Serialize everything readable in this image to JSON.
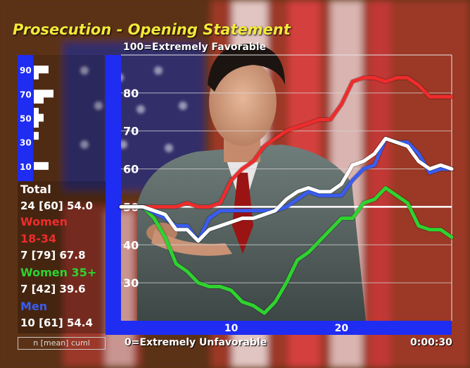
{
  "title": "Prosecution - Opening Statement",
  "scale_top_label": "100=Extremely Favorable",
  "scale_bottom_label": "0=Extremely Unfavorable",
  "timer": "0:00:30",
  "legend": {
    "groups": [
      {
        "label": "Total",
        "color": "#ffffff",
        "n": "24",
        "mean": "[60]",
        "cuml": "54.0"
      },
      {
        "label": "Women 18-34",
        "label_lines": [
          "Women",
          "18-34"
        ],
        "color": "#ee2c2c",
        "n": "7",
        "mean": "[79]",
        "cuml": "67.8"
      },
      {
        "label": "Women 35+",
        "label_lines": [
          "Women 35+"
        ],
        "color": "#2fd22f",
        "n": "7",
        "mean": "[42]",
        "cuml": "39.6"
      },
      {
        "label": "Men",
        "label_lines": [
          "Men"
        ],
        "color": "#3a5cf0",
        "n": "10",
        "mean": "[61]",
        "cuml": "54.4"
      }
    ],
    "footer": "n [mean] cuml"
  },
  "histogram": {
    "tick_labels": [
      "90",
      "70",
      "50",
      "30",
      "10"
    ],
    "tick_values": [
      90,
      70,
      50,
      30,
      10
    ],
    "bins": [
      {
        "value": 90,
        "count": 3
      },
      {
        "value": 85,
        "count": 1
      },
      {
        "value": 70,
        "count": 4
      },
      {
        "value": 65,
        "count": 2
      },
      {
        "value": 55,
        "count": 1
      },
      {
        "value": 50,
        "count": 2
      },
      {
        "value": 45,
        "count": 1
      },
      {
        "value": 35,
        "count": 1
      },
      {
        "value": 10,
        "count": 3
      }
    ]
  },
  "chart_data": {
    "type": "line",
    "ylim": [
      20,
      90
    ],
    "xlim": [
      0,
      30
    ],
    "yticks": [
      30,
      40,
      50,
      60,
      70,
      80
    ],
    "xticks": [
      10,
      20
    ],
    "grid": true,
    "neutral_line": 50,
    "series": [
      {
        "name": "Total",
        "color": "#ffffff",
        "x": [
          0,
          2,
          4,
          5,
          6,
          7,
          8,
          9,
          10,
          11,
          12,
          13,
          14,
          15,
          16,
          17,
          18,
          19,
          20,
          21,
          22,
          23,
          24,
          25,
          26,
          27,
          28,
          29,
          30
        ],
        "y": [
          50,
          50,
          48,
          44,
          44,
          41,
          44,
          45,
          46,
          47,
          47,
          48,
          49,
          52,
          54,
          55,
          54,
          54,
          56,
          61,
          62,
          64,
          68,
          67,
          66,
          62,
          60,
          61,
          60
        ]
      },
      {
        "name": "Women 18-34",
        "color": "#ee2c2c",
        "x": [
          0,
          2,
          4,
          5,
          6,
          7,
          8,
          9,
          10,
          11,
          12,
          13,
          14,
          15,
          16,
          17,
          18,
          19,
          20,
          21,
          22,
          23,
          24,
          25,
          26,
          27,
          28,
          29,
          30
        ],
        "y": [
          50,
          50,
          50,
          50,
          51,
          50,
          50,
          51,
          57,
          60,
          62,
          66,
          68,
          70,
          71,
          72,
          73,
          73,
          77,
          83,
          84,
          84,
          83,
          84,
          84,
          82,
          79,
          79,
          79
        ]
      },
      {
        "name": "Women 35+",
        "color": "#2fd22f",
        "x": [
          0,
          2,
          3,
          4,
          5,
          6,
          7,
          8,
          9,
          10,
          11,
          12,
          13,
          14,
          15,
          16,
          17,
          18,
          19,
          20,
          21,
          22,
          23,
          24,
          25,
          26,
          27,
          28,
          29,
          30
        ],
        "y": [
          50,
          50,
          47,
          42,
          35,
          33,
          30,
          29,
          29,
          28,
          25,
          24,
          22,
          25,
          30,
          36,
          38,
          41,
          44,
          47,
          47,
          51,
          52,
          55,
          53,
          51,
          45,
          44,
          44,
          42
        ]
      },
      {
        "name": "Men",
        "color": "#3a5cf0",
        "x": [
          0,
          2,
          4,
          5,
          6,
          7,
          8,
          9,
          10,
          11,
          12,
          13,
          14,
          15,
          16,
          17,
          18,
          19,
          20,
          21,
          22,
          23,
          24,
          25,
          26,
          27,
          28,
          29,
          30
        ],
        "y": [
          50,
          50,
          47,
          45,
          45,
          41,
          47,
          49,
          49,
          49,
          49,
          49,
          49,
          50,
          52,
          54,
          53,
          53,
          53,
          57,
          60,
          61,
          68,
          67,
          67,
          64,
          59,
          60,
          60
        ]
      }
    ]
  }
}
